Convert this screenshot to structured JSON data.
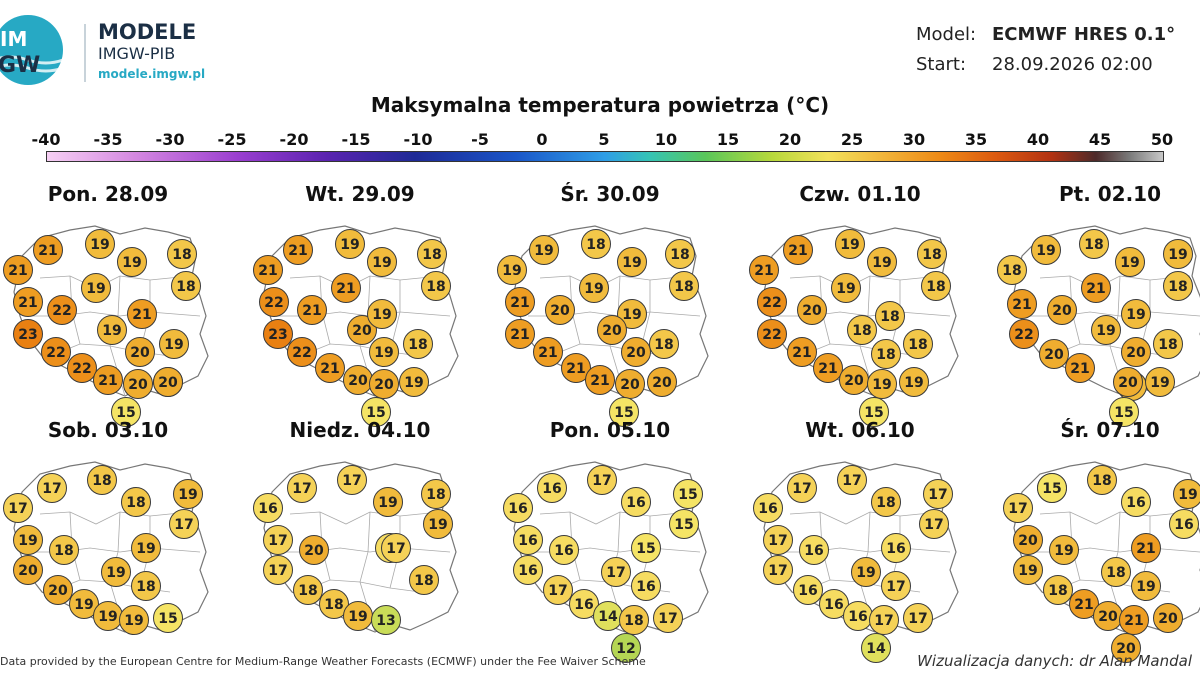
{
  "brand": {
    "logo_text_top": "IM",
    "logo_text_bottom": "GW",
    "name": "MODELE",
    "org": "IMGW-PIB",
    "url": "modele.imgw.pl"
  },
  "meta": {
    "model_label": "Model:",
    "model_value": "ECMWF HRES 0.1°",
    "start_label": "Start:",
    "start_value": "28.09.2026 02:00"
  },
  "title": "Maksymalna temperatura powietrza (°C)",
  "scale": {
    "min": -40,
    "max": 50,
    "labels": [
      "-40",
      "-35",
      "-30",
      "-25",
      "-20",
      "-15",
      "-10",
      "-5",
      "0",
      "5",
      "10",
      "15",
      "20",
      "25",
      "30",
      "35",
      "40",
      "45",
      "50"
    ]
  },
  "days": [
    {
      "label": "Pon. 28.09",
      "temps": [
        21,
        19,
        18,
        21,
        19,
        18,
        19,
        21,
        22,
        21,
        19,
        23,
        20,
        19,
        22,
        20,
        22,
        21,
        20,
        20,
        15
      ]
    },
    {
      "label": "Wt. 29.09",
      "temps": [
        21,
        19,
        18,
        21,
        19,
        18,
        21,
        22,
        21,
        20,
        19,
        23,
        19,
        18,
        22,
        21,
        20,
        20,
        19,
        15
      ]
    },
    {
      "label": "Śr. 30.09",
      "temps": [
        19,
        18,
        18,
        19,
        19,
        18,
        21,
        19,
        20,
        21,
        19,
        20,
        18,
        21,
        20,
        21,
        21,
        20,
        20,
        15
      ]
    },
    {
      "label": "Czw. 01.10",
      "temps": [
        21,
        19,
        18,
        21,
        19,
        18,
        19,
        18,
        22,
        20,
        18,
        22,
        18,
        18,
        21,
        21,
        20,
        19,
        19,
        15
      ]
    },
    {
      "label": "Pt. 02.10",
      "temps": [
        18,
        19,
        19,
        18,
        19,
        18,
        21,
        21,
        20,
        19,
        19,
        22,
        20,
        18,
        20,
        19,
        21,
        20,
        19,
        15
      ]
    },
    {
      "label": "Sob. 03.10",
      "temps": [
        17,
        18,
        19,
        17,
        18,
        17,
        19,
        18,
        19,
        19,
        18,
        20,
        20,
        19,
        19,
        19,
        15
      ]
    },
    {
      "label": "Niedz. 04.10",
      "temps": [
        17,
        17,
        18,
        16,
        19,
        19,
        16,
        17,
        20,
        17,
        17,
        18,
        18,
        19,
        18,
        13
      ]
    },
    {
      "label": "Pon. 05.10",
      "temps": [
        16,
        17,
        15,
        16,
        16,
        15,
        16,
        16,
        17,
        15,
        16,
        16,
        17,
        16,
        14,
        18,
        17,
        12
      ]
    },
    {
      "label": "Wt. 06.10",
      "temps": [
        17,
        17,
        17,
        16,
        18,
        17,
        17,
        16,
        19,
        16,
        17,
        17,
        16,
        16,
        16,
        17,
        17,
        14
      ]
    },
    {
      "label": "Śr. 07.10",
      "temps": [
        18,
        18,
        19,
        17,
        16,
        16,
        20,
        19,
        18,
        21,
        19,
        19,
        18,
        21,
        20,
        21,
        20,
        20,
        15
      ]
    }
  ],
  "footer": {
    "left": "Data provided by the European Centre for Medium-Range Weather Forecasts (ECMWF) under the Fee Waiver Scheme",
    "right": "Wizualizacja danych: dr Alan Mandal"
  }
}
